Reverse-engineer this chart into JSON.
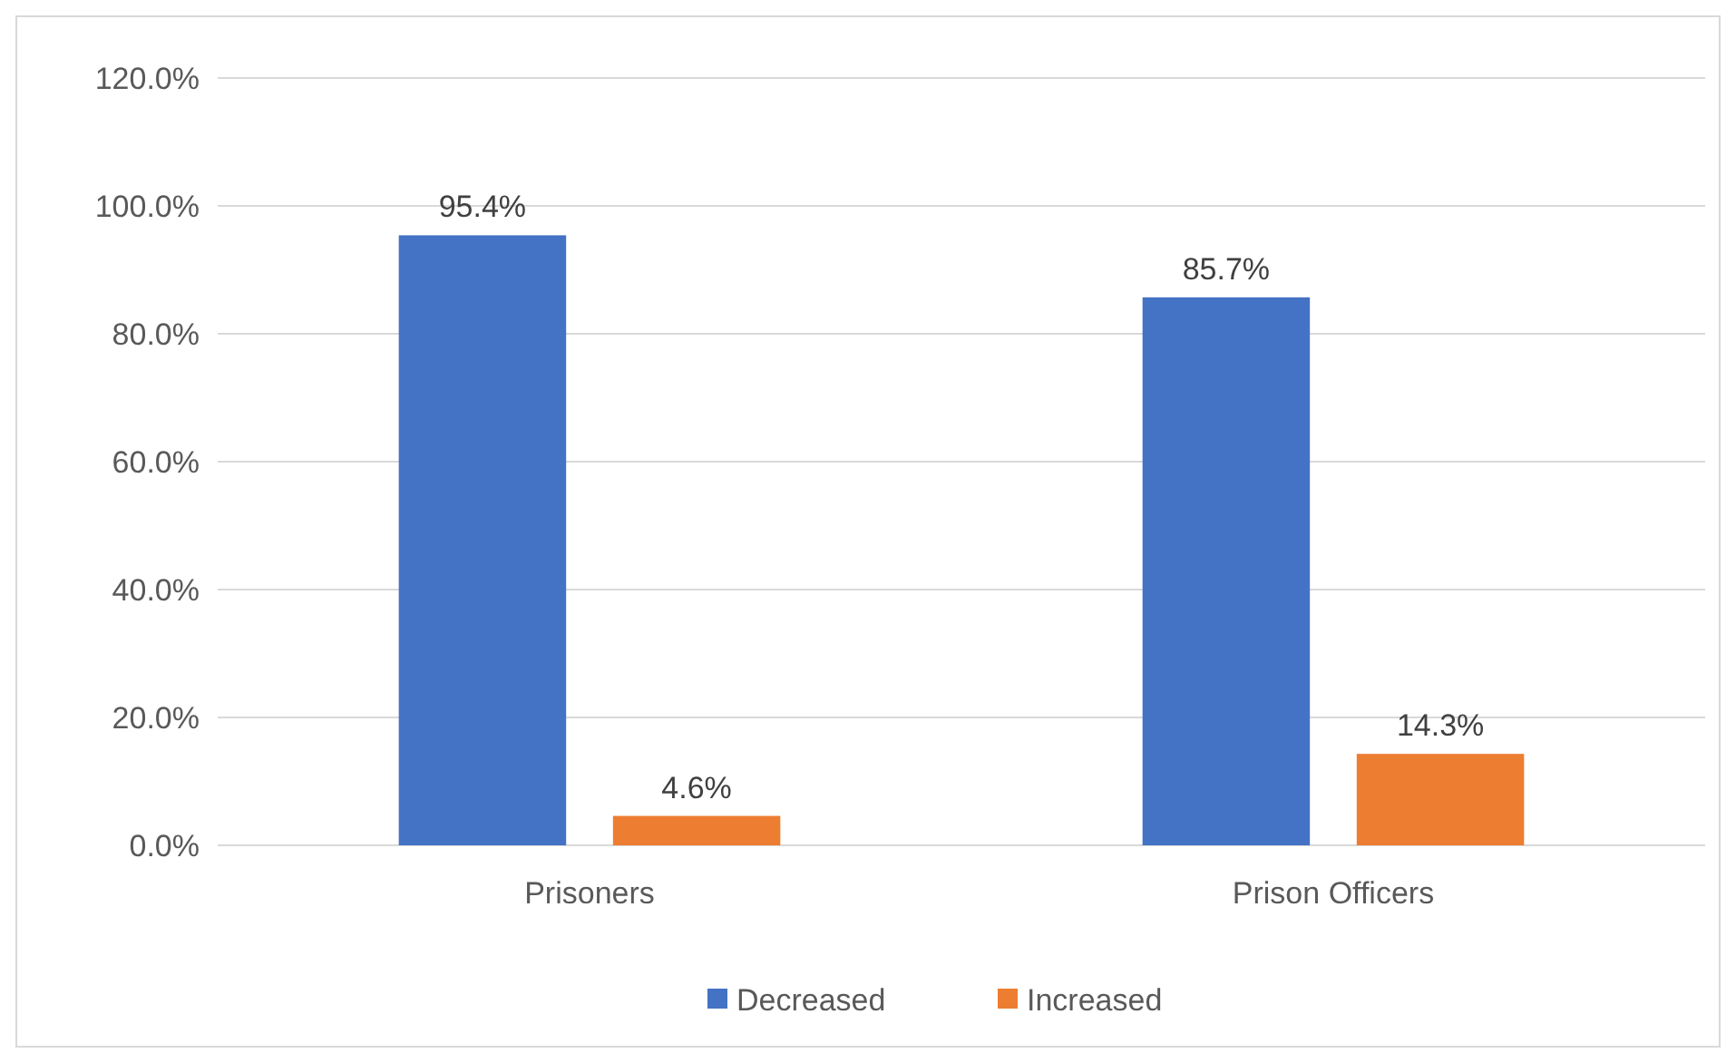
{
  "chart_data": {
    "type": "bar",
    "categories": [
      "Prisoners",
      "Prison Officers"
    ],
    "series": [
      {
        "name": "Decreased",
        "color": "#4472c4",
        "values": [
          95.4,
          85.7
        ],
        "value_labels": [
          "95.4%",
          "85.7%"
        ]
      },
      {
        "name": "Increased",
        "color": "#ed7d31",
        "values": [
          4.6,
          14.3
        ],
        "value_labels": [
          "4.6%",
          "14.3%"
        ]
      }
    ],
    "ylim": [
      0,
      120
    ],
    "yticks": [
      {
        "value": 0,
        "label": "0.0%"
      },
      {
        "value": 20,
        "label": "20.0%"
      },
      {
        "value": 40,
        "label": "40.0%"
      },
      {
        "value": 60,
        "label": "60.0%"
      },
      {
        "value": 80,
        "label": "80.0%"
      },
      {
        "value": 100,
        "label": "100.0%"
      },
      {
        "value": 120,
        "label": "120.0%"
      }
    ],
    "grid": "y",
    "legend": "bottom"
  }
}
